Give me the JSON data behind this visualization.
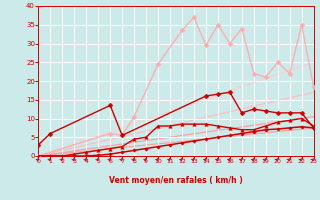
{
  "xlabel": "Vent moyen/en rafales ( km/h )",
  "xlim": [
    0,
    23
  ],
  "ylim": [
    0,
    40
  ],
  "yticks": [
    0,
    5,
    10,
    15,
    20,
    25,
    30,
    35,
    40
  ],
  "xticks": [
    0,
    1,
    2,
    3,
    4,
    5,
    6,
    7,
    8,
    9,
    10,
    11,
    12,
    13,
    14,
    15,
    16,
    17,
    18,
    19,
    20,
    21,
    22,
    23
  ],
  "background_color": "#cceaea",
  "grid_color": "#ffffff",
  "tick_color": "#cc0000",
  "axis_color": "#cc0000",
  "straight_lines": [
    {
      "x": [
        0,
        23
      ],
      "y": [
        0,
        7.5
      ],
      "color": "#ff9999",
      "lw": 0.9,
      "alpha": 0.9
    },
    {
      "x": [
        0,
        23
      ],
      "y": [
        0,
        10.5
      ],
      "color": "#ff9999",
      "lw": 0.9,
      "alpha": 0.9
    },
    {
      "x": [
        0,
        23
      ],
      "y": [
        0,
        17.0
      ],
      "color": "#ffbbbb",
      "lw": 0.9,
      "alpha": 0.9
    },
    {
      "x": [
        0,
        23
      ],
      "y": [
        0,
        25.0
      ],
      "color": "#ffcccc",
      "lw": 0.9,
      "alpha": 0.9
    }
  ],
  "series": [
    {
      "x": [
        0,
        6,
        7,
        8,
        10,
        12,
        13,
        14,
        15,
        16,
        17,
        18,
        19,
        20,
        21,
        22,
        23
      ],
      "y": [
        0,
        6,
        5.5,
        10.5,
        24.5,
        33.5,
        37,
        29.5,
        35,
        30,
        34,
        22,
        21,
        25,
        22,
        35,
        18.5
      ],
      "color": "#ffaaaa",
      "lw": 1.0,
      "marker": "D",
      "ms": 2.5,
      "alpha": 0.9
    },
    {
      "x": [
        0,
        1,
        6,
        7,
        14,
        15,
        16,
        17,
        18,
        19,
        20,
        21,
        22,
        23
      ],
      "y": [
        3,
        6,
        13.5,
        5.5,
        16,
        16.5,
        17,
        11.5,
        12.5,
        12,
        11.5,
        11.5,
        11.5,
        7.5
      ],
      "color": "#cc0000",
      "lw": 1.0,
      "marker": "D",
      "ms": 2.5,
      "alpha": 1.0
    },
    {
      "x": [
        0,
        1,
        2,
        3,
        4,
        5,
        6,
        7,
        8,
        9,
        10,
        11,
        12,
        13,
        14,
        15,
        16,
        17,
        18,
        19,
        20,
        21,
        22,
        23
      ],
      "y": [
        0,
        0,
        0,
        0.5,
        1,
        1.5,
        2,
        2.5,
        4.5,
        5,
        8,
        8,
        8.5,
        8.5,
        8.5,
        8,
        7.5,
        7,
        7,
        8,
        9,
        9.5,
        10,
        8
      ],
      "color": "#cc0000",
      "lw": 1.0,
      "marker": "^",
      "ms": 2.5,
      "alpha": 1.0
    },
    {
      "x": [
        0,
        1,
        2,
        3,
        4,
        5,
        6,
        7,
        8,
        9,
        10,
        11,
        12,
        13,
        14,
        15,
        16,
        17,
        18,
        19,
        20,
        21,
        22,
        23
      ],
      "y": [
        0,
        0,
        0,
        0,
        0,
        0.2,
        0.5,
        1.0,
        1.5,
        2.0,
        2.5,
        3.0,
        3.5,
        4.0,
        4.5,
        5.0,
        5.5,
        6.0,
        6.5,
        7.0,
        7.2,
        7.5,
        7.8,
        7.5
      ],
      "color": "#cc0000",
      "lw": 1.1,
      "marker": "D",
      "ms": 1.8,
      "alpha": 1.0
    }
  ]
}
